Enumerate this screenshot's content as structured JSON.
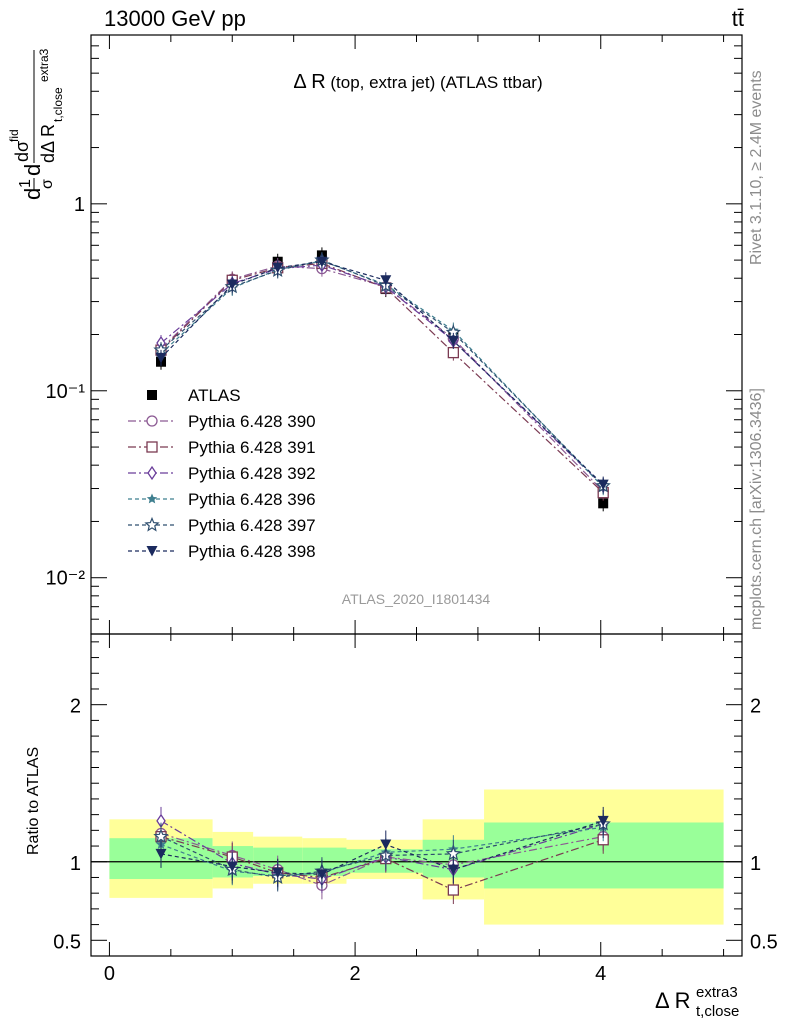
{
  "header": {
    "left": "13000 GeV pp",
    "right": "tt̄"
  },
  "side_labels": {
    "rivet": "Rivet 3.1.10, ≥ 2.4M events",
    "mcplots": "mcplots.cern.ch [arXiv:1306.3436]"
  },
  "chart_data": [
    {
      "type": "line",
      "title_main": "Δ R",
      "title_sub": " (top, extra jet) (ATLAS ttbar)",
      "watermark": "ATLAS_2020_I1801434",
      "ylabel": "dσ/dΔ R_{t,close}^{extra3} · 1/σ dσ^{fid}",
      "yscale": "log",
      "ylim": [
        0.005,
        8
      ],
      "xlim": [
        -0.15,
        5.15
      ],
      "yticks": [
        {
          "value": 1,
          "label": "1"
        },
        {
          "value": 0.1,
          "label": "10⁻¹"
        },
        {
          "value": 0.01,
          "label": "10⁻²"
        }
      ],
      "legend_position": "left-middle",
      "x": [
        0.42,
        1.0,
        1.37,
        1.73,
        2.25,
        2.8,
        4.02
      ],
      "series": [
        {
          "name": "ATLAS",
          "color": "#000000",
          "marker": "filled-square",
          "dash": "",
          "values": [
            0.143,
            0.38,
            0.49,
            0.53,
            0.35,
            0.195,
            0.025
          ]
        },
        {
          "name": "Pythia 6.428 390",
          "color": "#8c5a93",
          "marker": "open-circle",
          "dash": "8,3,2,3",
          "values": [
            0.168,
            0.395,
            0.465,
            0.45,
            0.36,
            0.19,
            0.029
          ]
        },
        {
          "name": "Pythia 6.428 391",
          "color": "#7b3a52",
          "marker": "open-square",
          "dash": "8,3,2,3",
          "values": [
            0.165,
            0.39,
            0.455,
            0.48,
            0.355,
            0.16,
            0.0285
          ]
        },
        {
          "name": "Pythia 6.428 392",
          "color": "#6a3d9a",
          "marker": "open-diamond",
          "dash": "8,3,2,3",
          "values": [
            0.18,
            0.375,
            0.45,
            0.47,
            0.36,
            0.185,
            0.031
          ]
        },
        {
          "name": "Pythia 6.428 396",
          "color": "#3f7f8f",
          "marker": "filled-star",
          "dash": "4,3",
          "values": [
            0.158,
            0.355,
            0.445,
            0.495,
            0.37,
            0.21,
            0.0305
          ]
        },
        {
          "name": "Pythia 6.428 397",
          "color": "#2f4f6f",
          "marker": "open-star",
          "dash": "4,3",
          "values": [
            0.165,
            0.36,
            0.44,
            0.5,
            0.365,
            0.205,
            0.031
          ]
        },
        {
          "name": "Pythia 6.428 398",
          "color": "#1b2a5e",
          "marker": "filled-triangle-down",
          "dash": "4,3",
          "values": [
            0.15,
            0.37,
            0.455,
            0.49,
            0.39,
            0.185,
            0.0315
          ]
        }
      ]
    },
    {
      "type": "line",
      "ylabel": "Ratio to ATLAS",
      "xlabel_main": "Δ R",
      "xlabel_sup": "extra3",
      "xlabel_sub": "t,close",
      "ylim": [
        0.4,
        2.45
      ],
      "xlim": [
        -0.15,
        5.15
      ],
      "yticks": [
        {
          "value": 0.5,
          "label": "0.5"
        },
        {
          "value": 1,
          "label": "1"
        },
        {
          "value": 2,
          "label": "2"
        }
      ],
      "xticks": [
        {
          "value": 0,
          "label": "0"
        },
        {
          "value": 2,
          "label": "2"
        },
        {
          "value": 4,
          "label": "4"
        }
      ],
      "bands": [
        {
          "x0": 0.0,
          "x1": 0.84,
          "green": [
            0.89,
            1.15
          ],
          "yellow": [
            0.77,
            1.27
          ]
        },
        {
          "x0": 0.84,
          "x1": 1.17,
          "green": [
            0.9,
            1.1
          ],
          "yellow": [
            0.83,
            1.19
          ]
        },
        {
          "x0": 1.17,
          "x1": 1.57,
          "green": [
            0.91,
            1.09
          ],
          "yellow": [
            0.86,
            1.16
          ]
        },
        {
          "x0": 1.57,
          "x1": 1.93,
          "green": [
            0.91,
            1.09
          ],
          "yellow": [
            0.86,
            1.15
          ]
        },
        {
          "x0": 1.93,
          "x1": 2.55,
          "green": [
            0.93,
            1.08
          ],
          "yellow": [
            0.89,
            1.14
          ]
        },
        {
          "x0": 2.55,
          "x1": 3.05,
          "green": [
            0.9,
            1.14
          ],
          "yellow": [
            0.76,
            1.27
          ]
        },
        {
          "x0": 3.05,
          "x1": 5.0,
          "green": [
            0.83,
            1.25
          ],
          "yellow": [
            0.6,
            1.46
          ]
        }
      ],
      "x": [
        0.42,
        1.0,
        1.37,
        1.73,
        2.25,
        2.8,
        4.02
      ],
      "series": [
        {
          "name": "Pythia 6.428 390",
          "values": [
            1.18,
            1.04,
            0.95,
            0.85,
            1.03,
            0.98,
            1.16
          ]
        },
        {
          "name": "Pythia 6.428 391",
          "values": [
            1.16,
            1.03,
            0.93,
            0.9,
            1.02,
            0.82,
            1.14
          ]
        },
        {
          "name": "Pythia 6.428 392",
          "values": [
            1.26,
            0.99,
            0.92,
            0.89,
            1.03,
            0.95,
            1.24
          ]
        },
        {
          "name": "Pythia 6.428 396",
          "values": [
            1.11,
            0.94,
            0.91,
            0.93,
            1.06,
            1.08,
            1.22
          ]
        },
        {
          "name": "Pythia 6.428 397",
          "values": [
            1.16,
            0.95,
            0.9,
            0.94,
            1.04,
            1.05,
            1.24
          ]
        },
        {
          "name": "Pythia 6.428 398",
          "values": [
            1.05,
            0.97,
            0.93,
            0.92,
            1.11,
            0.95,
            1.26
          ]
        }
      ]
    }
  ]
}
